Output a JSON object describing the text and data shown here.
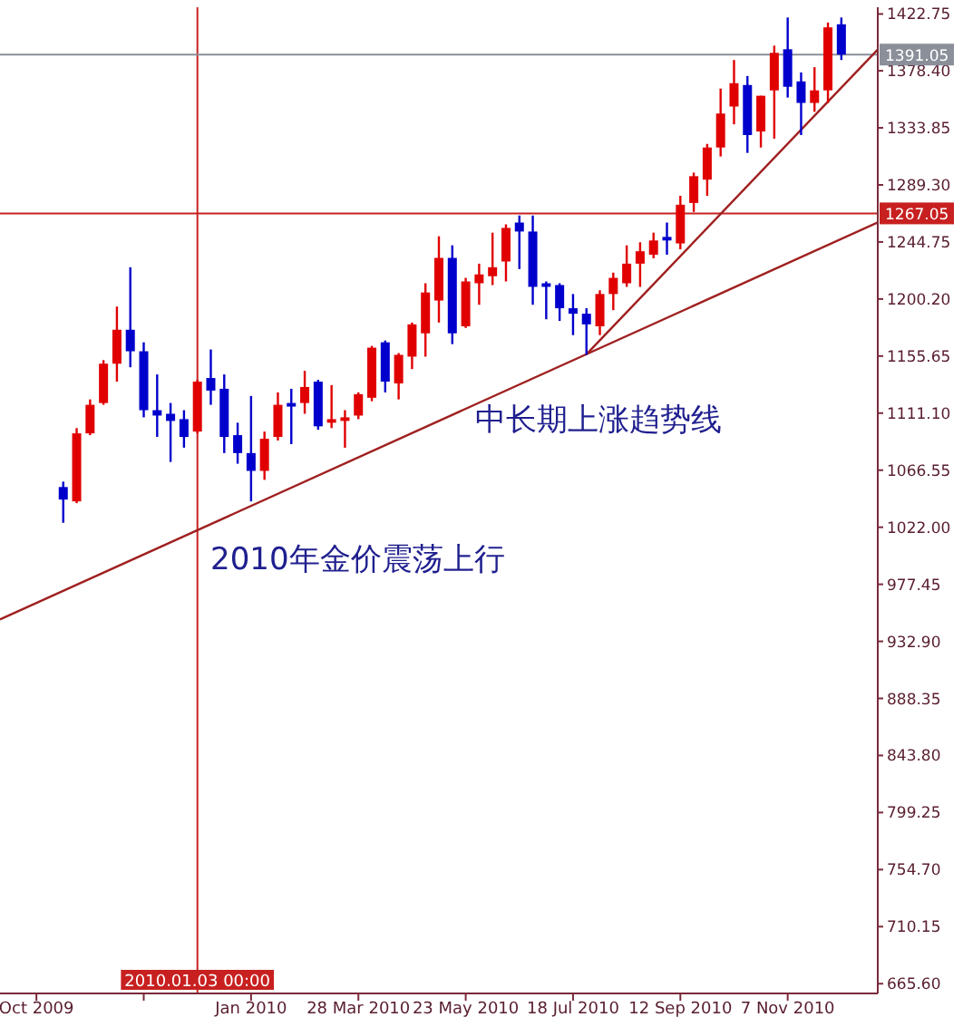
{
  "chart_data": {
    "type": "candlestick",
    "x": [
      "2009-10-25",
      "2009-11-01",
      "2009-11-08",
      "2009-11-15",
      "2009-11-22",
      "2009-11-29",
      "2009-12-06",
      "2009-12-13",
      "2009-12-20",
      "2009-12-27",
      "2010-01-03",
      "2010-01-10",
      "2010-01-17",
      "2010-01-24",
      "2010-01-31",
      "2010-02-07",
      "2010-02-14",
      "2010-02-21",
      "2010-02-28",
      "2010-03-07",
      "2010-03-14",
      "2010-03-21",
      "2010-03-28",
      "2010-04-04",
      "2010-04-11",
      "2010-04-18",
      "2010-04-25",
      "2010-05-02",
      "2010-05-09",
      "2010-05-16",
      "2010-05-23",
      "2010-05-30",
      "2010-06-06",
      "2010-06-13",
      "2010-06-20",
      "2010-06-27",
      "2010-07-04",
      "2010-07-11",
      "2010-07-18",
      "2010-07-25",
      "2010-08-01",
      "2010-08-08",
      "2010-08-15",
      "2010-08-22",
      "2010-08-29",
      "2010-09-05",
      "2010-09-12",
      "2010-09-19",
      "2010-09-26",
      "2010-10-03",
      "2010-10-10",
      "2010-10-17",
      "2010-10-24",
      "2010-10-31",
      "2010-11-07",
      "2010-11-14",
      "2010-11-21",
      "2010-11-28",
      "2010-12-05"
    ],
    "ohlc": [
      [
        1053.4,
        1057.6,
        1025.5,
        1043.6
      ],
      [
        1042.2,
        1099.4,
        1040.8,
        1095.3
      ],
      [
        1095.3,
        1121.8,
        1093.9,
        1117.6
      ],
      [
        1119.0,
        1152.5,
        1117.6,
        1149.7
      ],
      [
        1149.7,
        1194.3,
        1135.7,
        1176.2
      ],
      [
        1176.2,
        1225.0,
        1146.9,
        1159.4
      ],
      [
        1159.4,
        1166.4,
        1107.8,
        1113.4
      ],
      [
        1113.4,
        1141.3,
        1092.5,
        1109.2
      ],
      [
        1110.6,
        1119.0,
        1073.0,
        1105.0
      ],
      [
        1106.4,
        1113.4,
        1084.1,
        1092.5
      ],
      [
        1096.7,
        1137.1,
        1095.3,
        1135.7
      ],
      [
        1138.5,
        1160.8,
        1117.6,
        1128.7
      ],
      [
        1130.1,
        1141.3,
        1079.9,
        1092.5
      ],
      [
        1093.9,
        1103.6,
        1071.6,
        1079.9
      ],
      [
        1079.9,
        1124.5,
        1042.2,
        1066.0
      ],
      [
        1066.0,
        1096.7,
        1059.0,
        1091.1
      ],
      [
        1092.5,
        1127.3,
        1089.7,
        1117.6
      ],
      [
        1119.0,
        1130.1,
        1086.9,
        1116.2
      ],
      [
        1119.0,
        1144.1,
        1110.6,
        1131.5
      ],
      [
        1135.7,
        1137.1,
        1098.1,
        1100.8
      ],
      [
        1103.6,
        1133.0,
        1099.4,
        1106.4
      ],
      [
        1105.0,
        1113.4,
        1084.1,
        1107.8
      ],
      [
        1109.2,
        1127.3,
        1106.4,
        1125.9
      ],
      [
        1123.1,
        1163.6,
        1120.4,
        1162.2
      ],
      [
        1166.4,
        1167.8,
        1127.3,
        1135.7
      ],
      [
        1134.3,
        1158.0,
        1121.8,
        1156.6
      ],
      [
        1155.2,
        1181.8,
        1145.5,
        1180.4
      ],
      [
        1173.4,
        1212.5,
        1155.2,
        1205.3
      ],
      [
        1199.0,
        1249.2,
        1181.8,
        1232.3
      ],
      [
        1232.3,
        1242.1,
        1165.0,
        1173.4
      ],
      [
        1178.9,
        1216.7,
        1177.6,
        1213.9
      ],
      [
        1212.5,
        1227.8,
        1195.7,
        1219.4
      ],
      [
        1218.0,
        1252.0,
        1211.1,
        1225.0
      ],
      [
        1229.5,
        1258.5,
        1213.9,
        1255.7
      ],
      [
        1259.9,
        1265.4,
        1223.6,
        1252.9
      ],
      [
        1252.9,
        1265.4,
        1195.7,
        1209.7
      ],
      [
        1212.5,
        1213.9,
        1184.4,
        1209.7
      ],
      [
        1211.1,
        1212.5,
        1183.1,
        1193.0
      ],
      [
        1193.0,
        1204.1,
        1172.0,
        1188.7
      ],
      [
        1188.7,
        1193.0,
        1156.6,
        1180.4
      ],
      [
        1178.9,
        1207.0,
        1172.0,
        1204.1
      ],
      [
        1204.1,
        1220.8,
        1191.5,
        1216.7
      ],
      [
        1212.5,
        1242.1,
        1209.7,
        1227.8
      ],
      [
        1227.8,
        1244.5,
        1209.7,
        1237.5
      ],
      [
        1234.8,
        1252.0,
        1232.0,
        1245.9
      ],
      [
        1248.7,
        1259.9,
        1234.8,
        1245.9
      ],
      [
        1243.6,
        1280.8,
        1239.0,
        1273.8
      ],
      [
        1275.2,
        1298.9,
        1268.2,
        1296.1
      ],
      [
        1293.4,
        1321.3,
        1280.8,
        1318.5
      ],
      [
        1318.5,
        1364.5,
        1311.5,
        1345.0
      ],
      [
        1350.5,
        1386.8,
        1336.6,
        1368.7
      ],
      [
        1367.3,
        1374.3,
        1314.3,
        1328.2
      ],
      [
        1331.0,
        1358.9,
        1318.5,
        1358.9
      ],
      [
        1363.1,
        1398.0,
        1325.4,
        1392.4
      ],
      [
        1395.2,
        1420.0,
        1357.5,
        1365.9
      ],
      [
        1370.1,
        1377.1,
        1328.2,
        1353.3
      ],
      [
        1353.3,
        1381.2,
        1346.4,
        1363.1
      ],
      [
        1363.1,
        1416.1,
        1353.3,
        1412.3
      ],
      [
        1414.7,
        1420.0,
        1386.8,
        1391.05
      ]
    ],
    "colors": [
      "#0000cc",
      "#e00000",
      "#e00000",
      "#e00000",
      "#e00000",
      "#0000cc",
      "#0000cc",
      "#0000cc",
      "#0000cc",
      "#0000cc",
      "#e00000",
      "#0000cc",
      "#0000cc",
      "#0000cc",
      "#0000cc",
      "#e00000",
      "#e00000",
      "#0000cc",
      "#e00000",
      "#0000cc",
      "#e00000",
      "#e00000",
      "#e00000",
      "#e00000",
      "#0000cc",
      "#e00000",
      "#e00000",
      "#e00000",
      "#e00000",
      "#0000cc",
      "#e00000",
      "#e00000",
      "#e00000",
      "#e00000",
      "#0000cc",
      "#0000cc",
      "#0000cc",
      "#0000cc",
      "#0000cc",
      "#0000cc",
      "#e00000",
      "#e00000",
      "#e00000",
      "#e00000",
      "#e00000",
      "#0000cc",
      "#e00000",
      "#e00000",
      "#e00000",
      "#e00000",
      "#e00000",
      "#0000cc",
      "#e00000",
      "#e00000",
      "#0000cc",
      "#0000cc",
      "#e00000",
      "#e00000",
      "#0000cc"
    ],
    "series": [
      {
        "type": "line",
        "color": "#a02020",
        "x": [
          "2009-09-22",
          "2010-12-24"
        ],
        "values": [
          950,
          1260
        ]
      },
      {
        "type": "line",
        "color": "#a02020",
        "x": [
          "2010-07-25",
          "2010-12-24"
        ],
        "values": [
          1157,
          1395
        ]
      }
    ],
    "xlim": [
      "2009-09-22",
      "2010-12-24"
    ],
    "ylim": [
      658,
      1428
    ],
    "xticks": [
      {
        "value": "2009-10-11",
        "label": "Oct 2009"
      },
      {
        "value": "2009-12-06",
        "label": null
      },
      {
        "value": "2010-01-31",
        "label": "Jan 2010"
      },
      {
        "value": "2010-03-28",
        "label": "28 Mar 2010"
      },
      {
        "value": "2010-05-23",
        "label": "23 May 2010"
      },
      {
        "value": "2010-07-18",
        "label": "18 Jul 2010"
      },
      {
        "value": "2010-09-12",
        "label": "12 Sep 2010"
      },
      {
        "value": "2010-11-07",
        "label": "7 Nov 2010"
      }
    ],
    "yticks": [
      {
        "value": 665.6,
        "label": "665.60"
      },
      {
        "value": 710.15,
        "label": "710.15"
      },
      {
        "value": 754.7,
        "label": "754.70"
      },
      {
        "value": 799.25,
        "label": "799.25"
      },
      {
        "value": 843.8,
        "label": "843.80"
      },
      {
        "value": 888.35,
        "label": "888.35"
      },
      {
        "value": 932.9,
        "label": "932.90"
      },
      {
        "value": 977.45,
        "label": "977.45"
      },
      {
        "value": 1022,
        "label": "1022.00"
      },
      {
        "value": 1066.55,
        "label": "1066.55"
      },
      {
        "value": 1111.1,
        "label": "1111.10"
      },
      {
        "value": 1155.65,
        "label": "1155.65"
      },
      {
        "value": 1200.2,
        "label": "1200.20"
      },
      {
        "value": 1244.75,
        "label": "1244.75"
      },
      {
        "value": 1289.3,
        "label": "1289.30"
      },
      {
        "value": 1333.85,
        "label": "1333.85"
      },
      {
        "value": 1378.4,
        "label": "1378.40"
      },
      {
        "value": 1422.75,
        "label": "1422.75"
      }
    ],
    "ref_lines": [
      {
        "axis": "x",
        "value": "2010-01-03",
        "label": "2010.01.03 00:00",
        "color": "#c82020"
      },
      {
        "axis": "y",
        "value": 1267.05,
        "label": "1267.05",
        "color": "#c82020"
      },
      {
        "axis": "y",
        "value": 1391.05,
        "label": "1391.05",
        "color": "#8a8f9a"
      }
    ],
    "annotations": [
      "中长期上涨趋势线",
      "2010年金价震荡上行"
    ]
  }
}
